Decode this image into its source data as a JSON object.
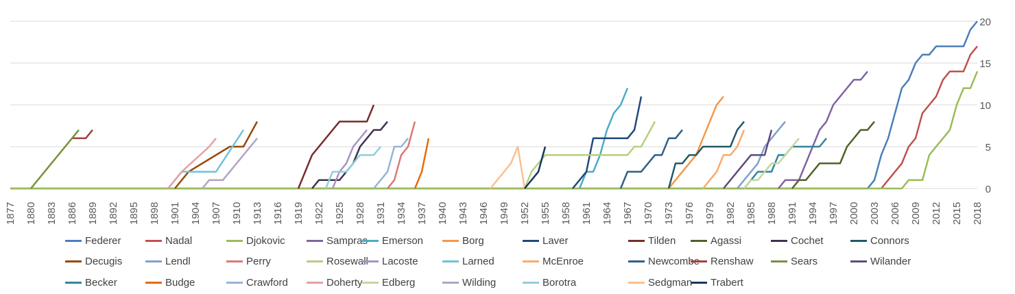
{
  "chart_data": {
    "type": "line",
    "x": [
      1877,
      1880,
      1883,
      1886,
      1889,
      1892,
      1895,
      1898,
      1901,
      1904,
      1907,
      1910,
      1913,
      1916,
      1919,
      1922,
      1925,
      1928,
      1931,
      1934,
      1937,
      1940,
      1943,
      1946,
      1949,
      1952,
      1955,
      1958,
      1961,
      1964,
      1967,
      1970,
      1973,
      1976,
      1979,
      1982,
      1985,
      1988,
      1991,
      1994,
      1997,
      2000,
      2003,
      2006,
      2009,
      2012,
      2015,
      2018
    ],
    "xlim": [
      1877,
      2018
    ],
    "ylim": [
      0,
      20
    ],
    "yticks": [
      0,
      5,
      10,
      15,
      20
    ],
    "grid": true,
    "legend_position": "bottom",
    "title": "",
    "xlabel": "",
    "ylabel": "",
    "series": [
      {
        "name": "Federer",
        "color": "#4a7ebb",
        "points": [
          [
            1877,
            0
          ],
          [
            2002,
            0
          ],
          [
            2003,
            1
          ],
          [
            2004,
            4
          ],
          [
            2005,
            6
          ],
          [
            2006,
            9
          ],
          [
            2007,
            12
          ],
          [
            2008,
            13
          ],
          [
            2009,
            15
          ],
          [
            2010,
            16
          ],
          [
            2011,
            16
          ],
          [
            2012,
            17
          ],
          [
            2016,
            17
          ],
          [
            2017,
            19
          ],
          [
            2018,
            20
          ]
        ]
      },
      {
        "name": "Nadal",
        "color": "#c0504d",
        "points": [
          [
            2004,
            0
          ],
          [
            2005,
            1
          ],
          [
            2006,
            2
          ],
          [
            2007,
            3
          ],
          [
            2008,
            5
          ],
          [
            2009,
            6
          ],
          [
            2010,
            9
          ],
          [
            2011,
            10
          ],
          [
            2012,
            11
          ],
          [
            2013,
            13
          ],
          [
            2014,
            14
          ],
          [
            2016,
            14
          ],
          [
            2017,
            16
          ],
          [
            2018,
            17
          ]
        ]
      },
      {
        "name": "Djokovic",
        "color": "#9bbb59",
        "points": [
          [
            1877,
            0
          ],
          [
            2007,
            0
          ],
          [
            2008,
            1
          ],
          [
            2010,
            1
          ],
          [
            2011,
            4
          ],
          [
            2014,
            7
          ],
          [
            2015,
            10
          ],
          [
            2016,
            12
          ],
          [
            2017,
            12
          ],
          [
            2018,
            14
          ]
        ]
      },
      {
        "name": "Sampras",
        "color": "#8064a2",
        "points": [
          [
            1989,
            0
          ],
          [
            1990,
            1
          ],
          [
            1992,
            1
          ],
          [
            1993,
            3
          ],
          [
            1994,
            5
          ],
          [
            1995,
            7
          ],
          [
            1996,
            8
          ],
          [
            1997,
            10
          ],
          [
            1998,
            11
          ],
          [
            1999,
            12
          ],
          [
            2000,
            13
          ],
          [
            2001,
            13
          ],
          [
            2002,
            14
          ]
        ]
      },
      {
        "name": "Emerson",
        "color": "#4bacc6",
        "points": [
          [
            1960,
            0
          ],
          [
            1961,
            2
          ],
          [
            1962,
            2
          ],
          [
            1963,
            4
          ],
          [
            1964,
            7
          ],
          [
            1965,
            9
          ],
          [
            1966,
            10
          ],
          [
            1967,
            12
          ]
        ]
      },
      {
        "name": "Borg",
        "color": "#f79646",
        "points": [
          [
            1973,
            0
          ],
          [
            1974,
            1
          ],
          [
            1975,
            2
          ],
          [
            1976,
            3
          ],
          [
            1977,
            4
          ],
          [
            1978,
            6
          ],
          [
            1979,
            8
          ],
          [
            1980,
            10
          ],
          [
            1981,
            11
          ]
        ]
      },
      {
        "name": "Laver",
        "color": "#1f497d",
        "points": [
          [
            1959,
            0
          ],
          [
            1960,
            1
          ],
          [
            1961,
            2
          ],
          [
            1962,
            6
          ],
          [
            1967,
            6
          ],
          [
            1968,
            7
          ],
          [
            1969,
            11
          ]
        ]
      },
      {
        "name": "Tilden",
        "color": "#772c2a",
        "points": [
          [
            1919,
            0
          ],
          [
            1920,
            2
          ],
          [
            1921,
            4
          ],
          [
            1925,
            8
          ],
          [
            1929,
            8
          ],
          [
            1930,
            10
          ]
        ]
      },
      {
        "name": "Agassi",
        "color": "#4f6228",
        "points": [
          [
            1991,
            0
          ],
          [
            1992,
            1
          ],
          [
            1993,
            1
          ],
          [
            1994,
            2
          ],
          [
            1995,
            3
          ],
          [
            1998,
            3
          ],
          [
            1999,
            5
          ],
          [
            2000,
            6
          ],
          [
            2001,
            7
          ],
          [
            2002,
            7
          ],
          [
            2003,
            8
          ]
        ]
      },
      {
        "name": "Cochet",
        "color": "#403151",
        "points": [
          [
            1921,
            0
          ],
          [
            1922,
            1
          ],
          [
            1925,
            1
          ],
          [
            1926,
            2
          ],
          [
            1927,
            3
          ],
          [
            1928,
            5
          ],
          [
            1929,
            6
          ],
          [
            1930,
            7
          ],
          [
            1931,
            7
          ],
          [
            1932,
            8
          ]
        ]
      },
      {
        "name": "Connors",
        "color": "#215968",
        "points": [
          [
            1973,
            0
          ],
          [
            1974,
            3
          ],
          [
            1975,
            3
          ],
          [
            1976,
            4
          ],
          [
            1977,
            4
          ],
          [
            1978,
            5
          ],
          [
            1982,
            5
          ],
          [
            1983,
            7
          ],
          [
            1984,
            8
          ]
        ]
      },
      {
        "name": "Decugis",
        "color": "#984807",
        "points": [
          [
            1901,
            0
          ],
          [
            1903,
            2
          ],
          [
            1909,
            5
          ],
          [
            1911,
            5
          ],
          [
            1913,
            8
          ]
        ]
      },
      {
        "name": "Lendl",
        "color": "#7f9fcf",
        "points": [
          [
            1983,
            0
          ],
          [
            1984,
            1
          ],
          [
            1986,
            3
          ],
          [
            1987,
            5
          ],
          [
            1988,
            6
          ],
          [
            1989,
            7
          ],
          [
            1990,
            8
          ]
        ]
      },
      {
        "name": "Perry",
        "color": "#d87a78",
        "points": [
          [
            1932,
            0
          ],
          [
            1933,
            1
          ],
          [
            1934,
            4
          ],
          [
            1935,
            5
          ],
          [
            1936,
            8
          ]
        ]
      },
      {
        "name": "Rosewall",
        "color": "#b7cf7e",
        "points": [
          [
            1952,
            0
          ],
          [
            1953,
            2
          ],
          [
            1955,
            4
          ],
          [
            1967,
            4
          ],
          [
            1968,
            5
          ],
          [
            1969,
            5
          ],
          [
            1971,
            8
          ]
        ]
      },
      {
        "name": "Lacoste",
        "color": "#a992c2",
        "points": [
          [
            1924,
            0
          ],
          [
            1925,
            2
          ],
          [
            1926,
            3
          ],
          [
            1927,
            5
          ],
          [
            1928,
            6
          ],
          [
            1929,
            7
          ]
        ]
      },
      {
        "name": "Larned",
        "color": "#6ec2d8",
        "points": [
          [
            1900,
            0
          ],
          [
            1901,
            1
          ],
          [
            1902,
            2
          ],
          [
            1907,
            2
          ],
          [
            1911,
            7
          ]
        ]
      },
      {
        "name": "McEnroe",
        "color": "#f9ab6b",
        "points": [
          [
            1978,
            0
          ],
          [
            1979,
            1
          ],
          [
            1980,
            2
          ],
          [
            1981,
            4
          ],
          [
            1982,
            4
          ],
          [
            1983,
            5
          ],
          [
            1984,
            7
          ]
        ]
      },
      {
        "name": "Newcombe",
        "color": "#2f5f8a",
        "points": [
          [
            1966,
            0
          ],
          [
            1967,
            2
          ],
          [
            1969,
            2
          ],
          [
            1970,
            3
          ],
          [
            1971,
            4
          ],
          [
            1972,
            4
          ],
          [
            1973,
            6
          ],
          [
            1974,
            6
          ],
          [
            1975,
            7
          ]
        ]
      },
      {
        "name": "Renshaw",
        "color": "#a0423f",
        "points": [
          [
            1886,
            6
          ],
          [
            1888,
            6
          ],
          [
            1889,
            7
          ]
        ]
      },
      {
        "name": "Sears",
        "color": "#76923c",
        "points": [
          [
            1880,
            0
          ],
          [
            1881,
            1
          ],
          [
            1882,
            2
          ],
          [
            1887,
            7
          ]
        ]
      },
      {
        "name": "Wilander",
        "color": "#604a7b",
        "points": [
          [
            1981,
            0
          ],
          [
            1982,
            1
          ],
          [
            1983,
            2
          ],
          [
            1984,
            3
          ],
          [
            1985,
            4
          ],
          [
            1987,
            4
          ],
          [
            1988,
            7
          ]
        ]
      },
      {
        "name": "Becker",
        "color": "#31859c",
        "points": [
          [
            1984,
            0
          ],
          [
            1985,
            1
          ],
          [
            1986,
            2
          ],
          [
            1988,
            2
          ],
          [
            1989,
            4
          ],
          [
            1990,
            4
          ],
          [
            1991,
            5
          ],
          [
            1995,
            5
          ],
          [
            1996,
            6
          ]
        ]
      },
      {
        "name": "Budge",
        "color": "#e46c0a",
        "points": [
          [
            1936,
            0
          ],
          [
            1937,
            2
          ],
          [
            1938,
            6
          ]
        ]
      },
      {
        "name": "Crawford",
        "color": "#95b3d7",
        "points": [
          [
            1930,
            0
          ],
          [
            1932,
            2
          ],
          [
            1933,
            5
          ],
          [
            1934,
            5
          ],
          [
            1935,
            6
          ]
        ]
      },
      {
        "name": "Doherty",
        "color": "#e6a09f",
        "points": [
          [
            1900,
            0
          ],
          [
            1902,
            2
          ],
          [
            1906,
            5
          ],
          [
            1907,
            6
          ]
        ]
      },
      {
        "name": "Edberg",
        "color": "#c4d79b",
        "points": [
          [
            1984,
            0
          ],
          [
            1985,
            1
          ],
          [
            1986,
            1
          ],
          [
            1988,
            3
          ],
          [
            1989,
            3
          ],
          [
            1990,
            4
          ],
          [
            1991,
            5
          ],
          [
            1992,
            6
          ]
        ]
      },
      {
        "name": "Wilding",
        "color": "#b3a2c7",
        "points": [
          [
            1905,
            0
          ],
          [
            1906,
            1
          ],
          [
            1908,
            1
          ],
          [
            1913,
            6
          ]
        ]
      },
      {
        "name": "Borotra",
        "color": "#92cddc",
        "points": [
          [
            1923,
            0
          ],
          [
            1924,
            2
          ],
          [
            1926,
            2
          ],
          [
            1927,
            3
          ],
          [
            1928,
            4
          ],
          [
            1930,
            4
          ],
          [
            1931,
            5
          ]
        ]
      },
      {
        "name": "Sedgman",
        "color": "#fac090",
        "points": [
          [
            1947,
            0
          ],
          [
            1948,
            1
          ],
          [
            1949,
            2
          ],
          [
            1950,
            3
          ],
          [
            1951,
            5
          ],
          [
            1952,
            0
          ]
        ]
      },
      {
        "name": "Trabert",
        "color": "#17375e",
        "points": [
          [
            1952,
            0
          ],
          [
            1953,
            1
          ],
          [
            1954,
            2
          ],
          [
            1955,
            5
          ]
        ]
      }
    ]
  }
}
